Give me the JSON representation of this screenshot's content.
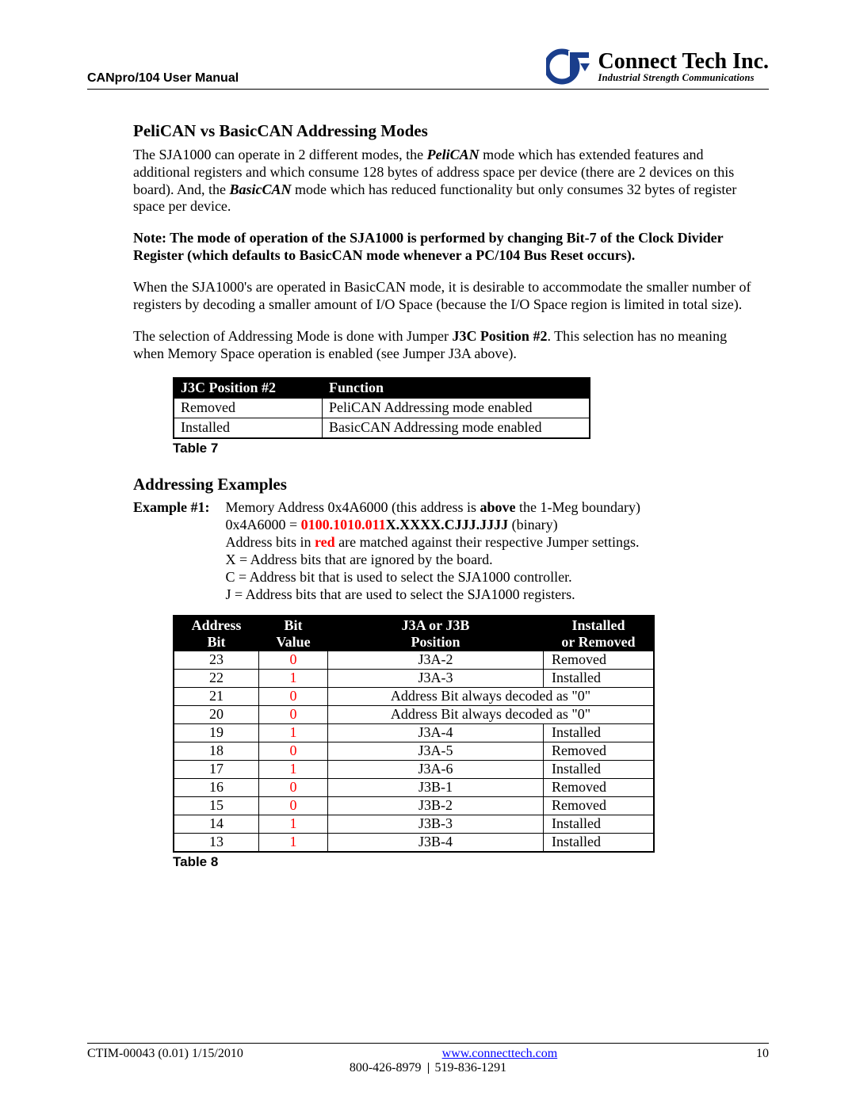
{
  "header": {
    "manual_title": "CANpro/104 User Manual",
    "company_name": "Connect Tech Inc.",
    "company_tagline": "Industrial Strength Communications"
  },
  "section1": {
    "title": "PeliCAN vs BasicCAN Addressing Modes",
    "para1_a": "The SJA1000 can operate in 2 different modes, the ",
    "para1_pelican": "PeliCAN",
    "para1_b": " mode which has extended features and additional registers and which consume 128 bytes of address space per device (there are 2 devices on this board). And, the ",
    "para1_basiccan": "BasicCAN",
    "para1_c": " mode which has reduced functionality but only consumes 32 bytes of register space per device.",
    "note": "Note: The mode of operation of the SJA1000 is performed by changing Bit-7 of the Clock Divider Register (which defaults to BasicCAN mode whenever a PC/104 Bus Reset occurs).",
    "para2": "When the SJA1000's are operated in BasicCAN mode, it is desirable to accommodate the smaller number of registers by decoding a smaller amount of I/O Space (because the I/O Space region is limited in total size).",
    "para3_a": "The selection of Addressing Mode is done with Jumper ",
    "para3_jumper": "J3C Position #2",
    "para3_b": ". This selection has no meaning when Memory Space operation is enabled (see Jumper J3A above)."
  },
  "table7": {
    "caption": "Table 7",
    "col1": "J3C Position #2",
    "col2": "Function",
    "rows": [
      {
        "pos": "Removed",
        "func": "PeliCAN Addressing mode enabled"
      },
      {
        "pos": "Installed",
        "func": "BasicCAN Addressing mode enabled"
      }
    ]
  },
  "section2": {
    "title": "Addressing Examples",
    "example_label": "Example #1:",
    "line1_a": "Memory Address 0x4A6000 (this address is ",
    "line1_above": "above",
    "line1_b": " the 1-Meg boundary)",
    "line2_a": "0x4A6000 = ",
    "line2_red": "0100.1010.011",
    "line2_b": "X.XXXX.CJJJ.JJJJ",
    "line2_c": " (binary)",
    "line3_a": "Address bits in ",
    "line3_red": "red",
    "line3_b": " are matched against their respective Jumper settings.",
    "line4": "X = Address bits that are ignored by the board.",
    "line5": "C = Address bit that is used to select the SJA1000 controller.",
    "line6": "J = Address bits that are used to select the SJA1000 registers."
  },
  "table8": {
    "caption": "Table 8",
    "h1a": "Address",
    "h1b": "Bit",
    "h2a": "Bit",
    "h2b": "Value",
    "h3a": "J3A or J3B",
    "h3b": "Position",
    "h4a": "Installed",
    "h4b": "or Removed",
    "decoded_text": "Address Bit always decoded as \"0\"",
    "rows": [
      {
        "bit": "23",
        "val": "0",
        "val_red": true,
        "pos": "J3A-2",
        "state": "Removed",
        "span": false
      },
      {
        "bit": "22",
        "val": "1",
        "val_red": true,
        "pos": "J3A-3",
        "state": "Installed",
        "span": false
      },
      {
        "bit": "21",
        "val": "0",
        "val_red": true,
        "pos": "",
        "state": "",
        "span": true
      },
      {
        "bit": "20",
        "val": "0",
        "val_red": true,
        "pos": "",
        "state": "",
        "span": true
      },
      {
        "bit": "19",
        "val": "1",
        "val_red": true,
        "pos": "J3A-4",
        "state": "Installed",
        "span": false
      },
      {
        "bit": "18",
        "val": "0",
        "val_red": true,
        "pos": "J3A-5",
        "state": "Removed",
        "span": false
      },
      {
        "bit": "17",
        "val": "1",
        "val_red": true,
        "pos": "J3A-6",
        "state": "Installed",
        "span": false
      },
      {
        "bit": "16",
        "val": "0",
        "val_red": true,
        "pos": "J3B-1",
        "state": "Removed",
        "span": false
      },
      {
        "bit": "15",
        "val": "0",
        "val_red": true,
        "pos": "J3B-2",
        "state": "Removed",
        "span": false
      },
      {
        "bit": "14",
        "val": "1",
        "val_red": true,
        "pos": "J3B-3",
        "state": "Installed",
        "span": false
      },
      {
        "bit": "13",
        "val": "1",
        "val_red": true,
        "pos": "J3B-4",
        "state": "Installed",
        "span": false
      }
    ]
  },
  "footer": {
    "doc_id": "CTIM-00043 (0.01) 1/15/2010",
    "url": "www.connecttech.com",
    "page": "10",
    "phone1": "800-426-8979",
    "phone2": "519-836-1291"
  },
  "colors": {
    "text": "#000000",
    "red": "#ff0000",
    "link": "#0000ff",
    "table_header_bg": "#000000",
    "table_header_fg": "#ffffff",
    "logo_blue": "#1a3e8c"
  }
}
